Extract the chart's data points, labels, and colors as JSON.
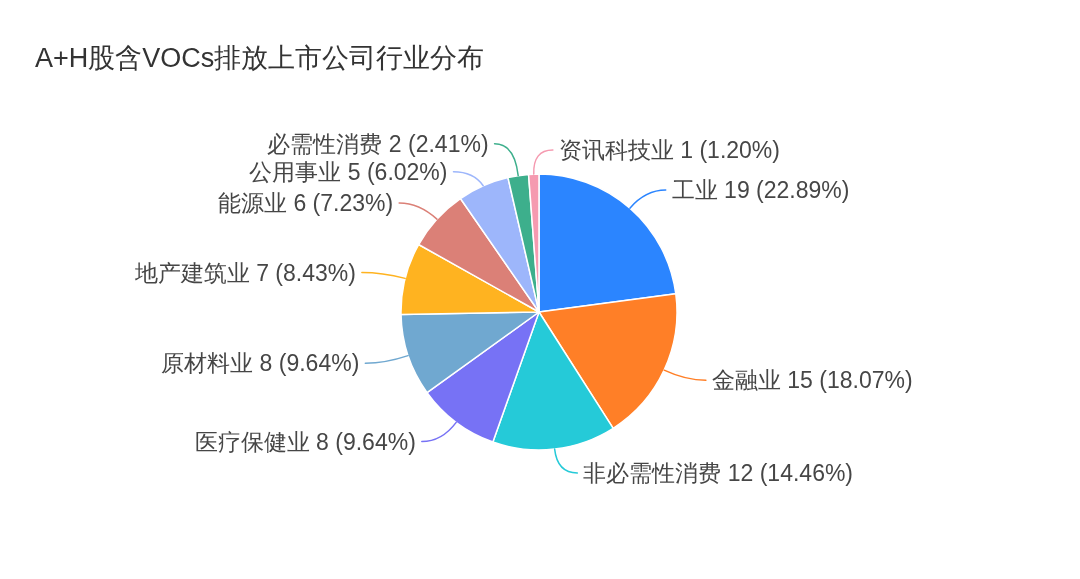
{
  "chart_data": {
    "type": "pie",
    "title": "A+H股含VOCs排放上市公司行业分布",
    "categories": [
      "工业",
      "金融业",
      "非必需性消费",
      "医疗保健业",
      "原材料业",
      "地产建筑业",
      "能源业",
      "公用事业",
      "必需性消费",
      "资讯科技业"
    ],
    "values": [
      19,
      15,
      12,
      8,
      8,
      7,
      6,
      5,
      2,
      1
    ],
    "colors": [
      "#2b85ff",
      "#ff7f27",
      "#25cad8",
      "#7772f5",
      "#70a8d0",
      "#ffb320",
      "#db8077",
      "#9db6fb",
      "#3daf8c",
      "#f59ab0"
    ],
    "value_labels": [
      "19 (22.89%)",
      "15 (18.07%)",
      "12 (14.46%)",
      "8 (9.64%)",
      "8 (9.64%)",
      "7 (8.43%)",
      "6 (7.23%)",
      "5 (6.02%)",
      "2 (2.41%)",
      "1 (1.20%)"
    ]
  }
}
